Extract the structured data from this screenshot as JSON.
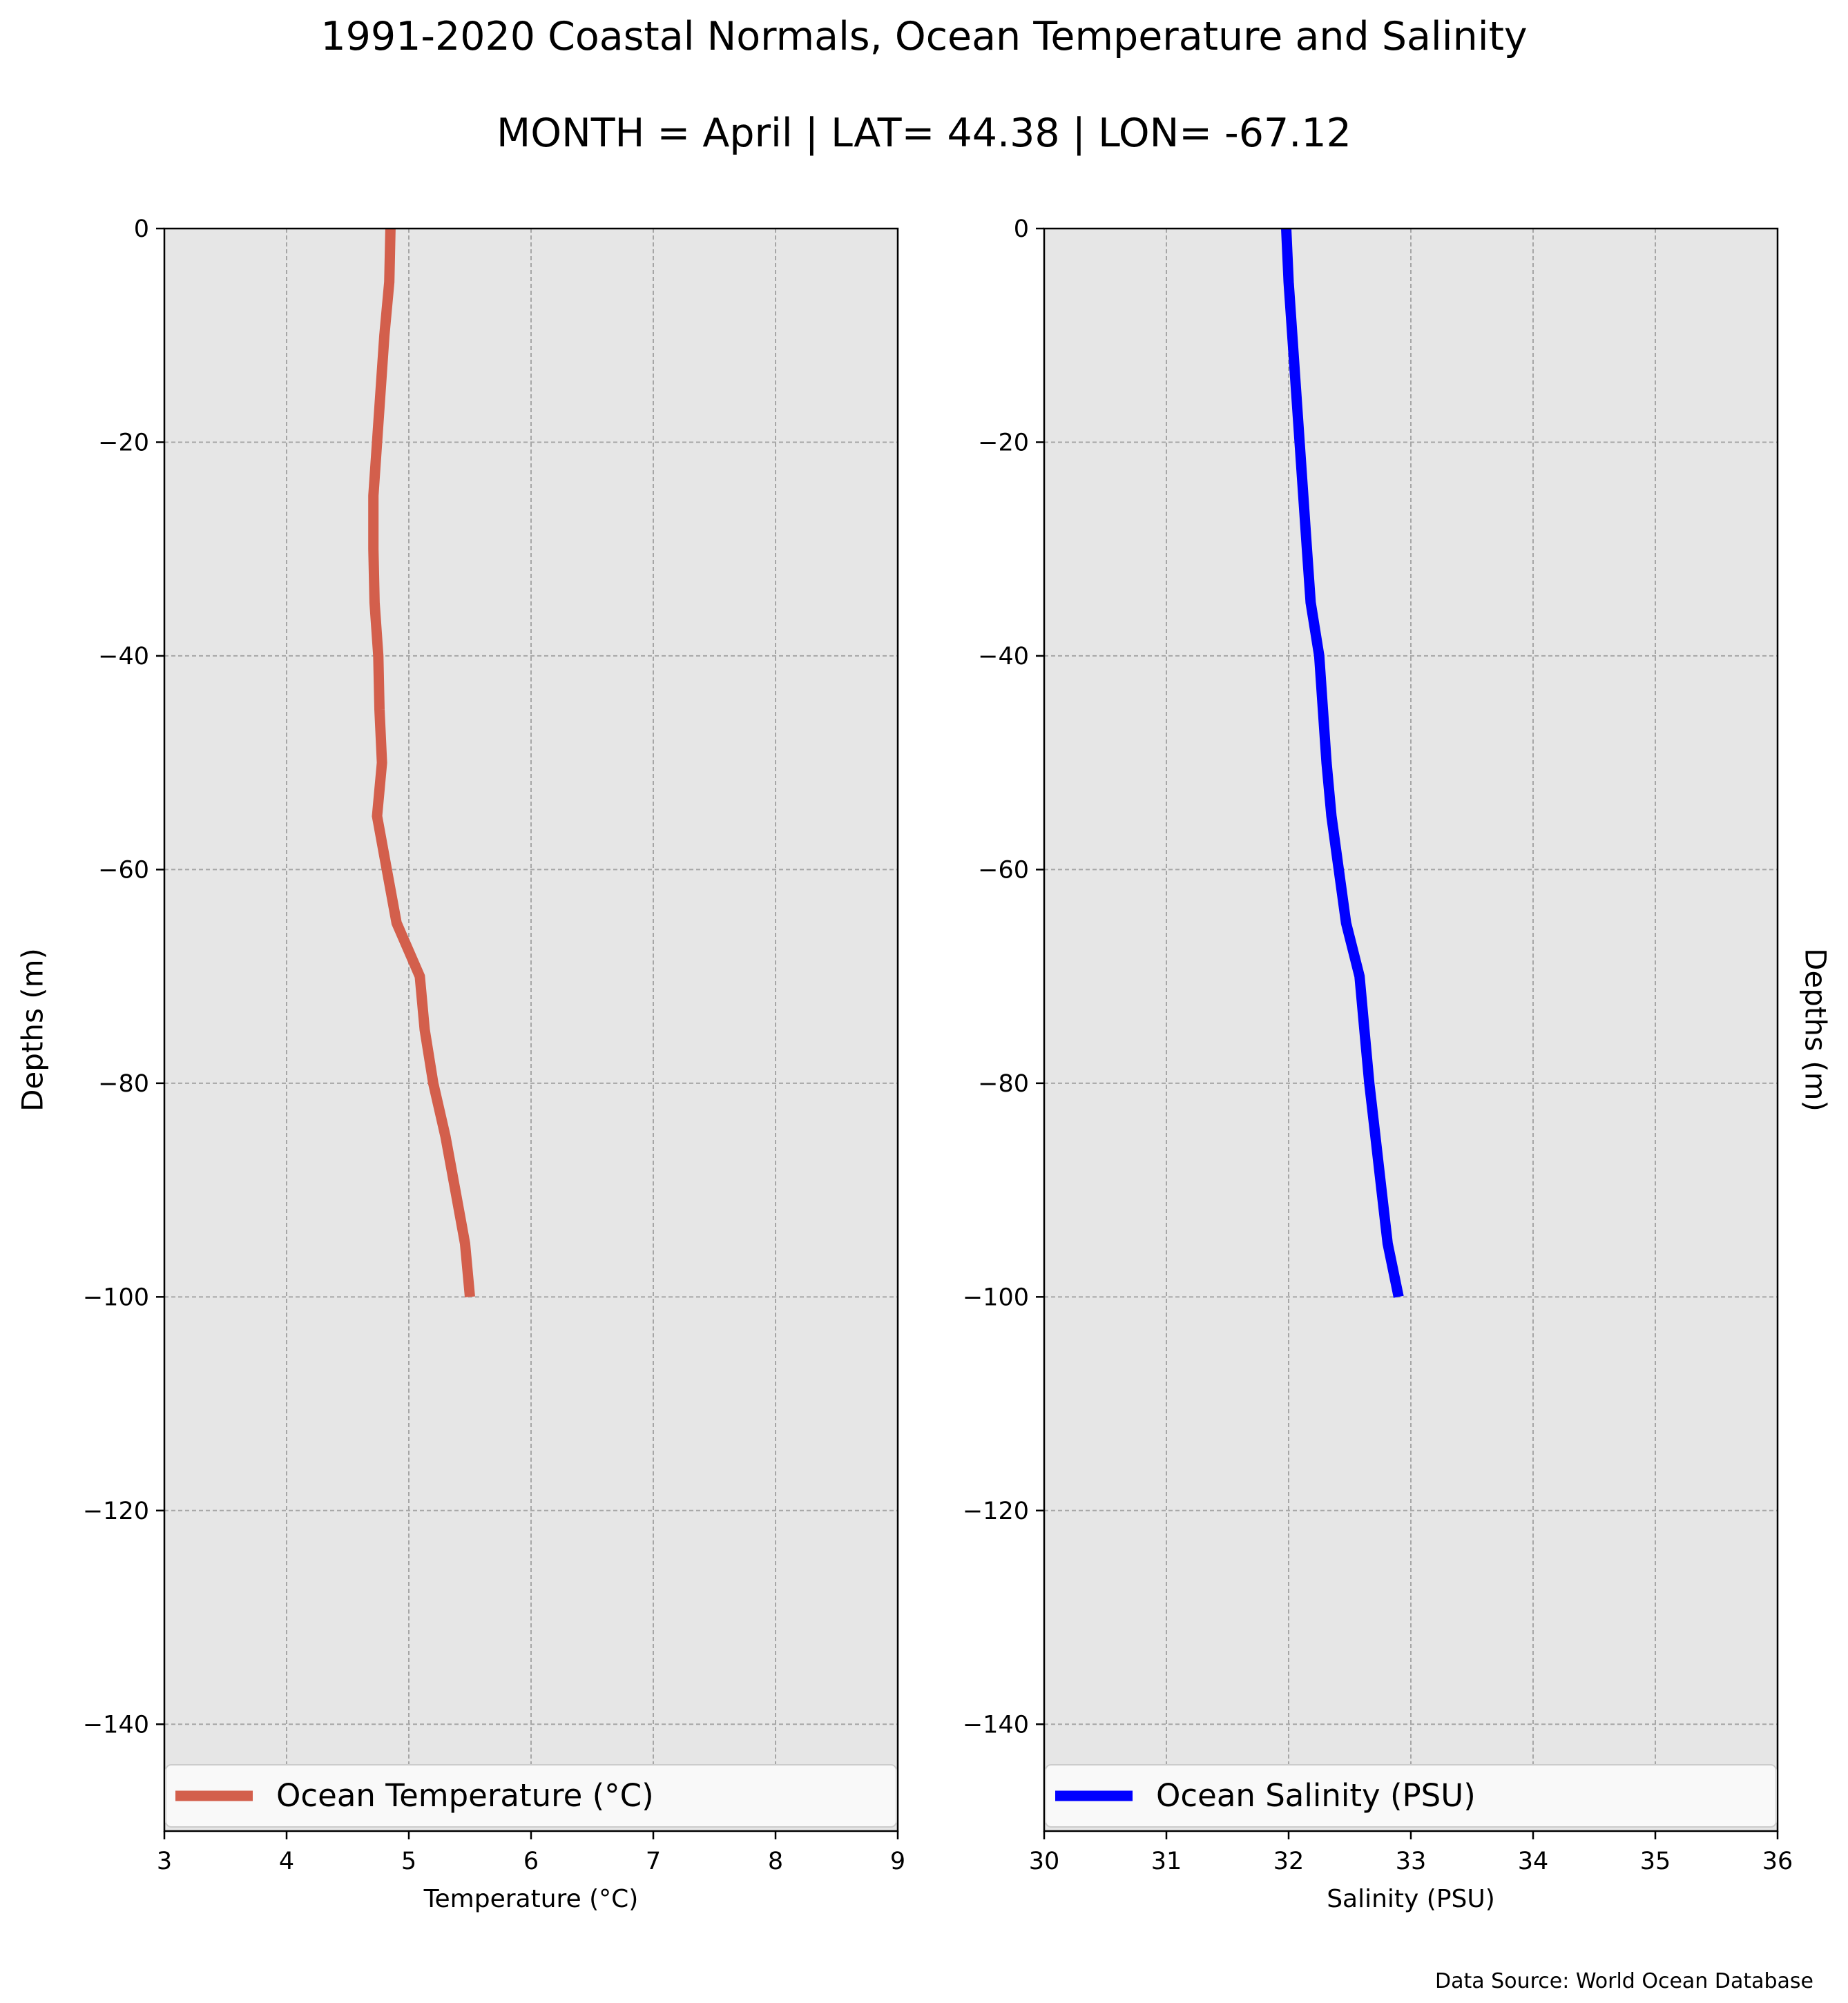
{
  "title": "1991-2020 Coastal Normals, Ocean Temperature and Salinity",
  "subtitle": "MONTH = April | LAT= 44.38 | LON= -67.12",
  "source_note": "Data Source: World Ocean Database",
  "colors": {
    "temperature": "#d35f4c",
    "salinity": "#0000ff",
    "axes_bg": "#e6e6e6",
    "grid": "#a6a6a6"
  },
  "chart_data": [
    {
      "type": "line",
      "xlabel": "Temperature (°C)",
      "ylabel": "Depths (m)",
      "xlim": [
        3,
        9
      ],
      "ylim": [
        -150,
        0
      ],
      "xticks": [
        3,
        4,
        5,
        6,
        7,
        8,
        9
      ],
      "yticks": [
        0,
        -20,
        -40,
        -60,
        -80,
        -100,
        -120,
        -140
      ],
      "grid": true,
      "legend_position": "lower center",
      "series": [
        {
          "name": "Ocean Temperature (°C)",
          "color": "#d35f4c",
          "x": [
            4.85,
            4.84,
            4.8,
            4.77,
            4.74,
            4.71,
            4.71,
            4.72,
            4.75,
            4.76,
            4.78,
            4.74,
            4.82,
            4.9,
            5.09,
            5.13,
            5.2,
            5.3,
            5.38,
            5.46,
            5.5
          ],
          "y": [
            0,
            -5,
            -10,
            -15,
            -20,
            -25,
            -30,
            -35,
            -40,
            -45,
            -50,
            -55,
            -60,
            -65,
            -70,
            -75,
            -80,
            -85,
            -90,
            -95,
            -100
          ]
        }
      ]
    },
    {
      "type": "line",
      "xlabel": "Salinity (PSU)",
      "ylabel": "Depths (m)",
      "xlim": [
        30,
        36
      ],
      "ylim": [
        -150,
        0
      ],
      "xticks": [
        30,
        31,
        32,
        33,
        34,
        35,
        36
      ],
      "yticks": [
        0,
        -20,
        -40,
        -60,
        -80,
        -100,
        -120,
        -140
      ],
      "grid": true,
      "legend_position": "lower center",
      "series": [
        {
          "name": "Ocean Salinity (PSU)",
          "color": "#0000ff",
          "x": [
            31.98,
            32.0,
            32.03,
            32.06,
            32.09,
            32.12,
            32.15,
            32.18,
            32.25,
            32.28,
            32.31,
            32.35,
            32.41,
            32.47,
            32.58,
            32.62,
            32.66,
            32.71,
            32.76,
            32.81,
            32.9
          ],
          "y": [
            0,
            -5,
            -10,
            -15,
            -20,
            -25,
            -30,
            -35,
            -40,
            -45,
            -50,
            -55,
            -60,
            -65,
            -70,
            -75,
            -80,
            -85,
            -90,
            -95,
            -100
          ]
        }
      ]
    }
  ]
}
